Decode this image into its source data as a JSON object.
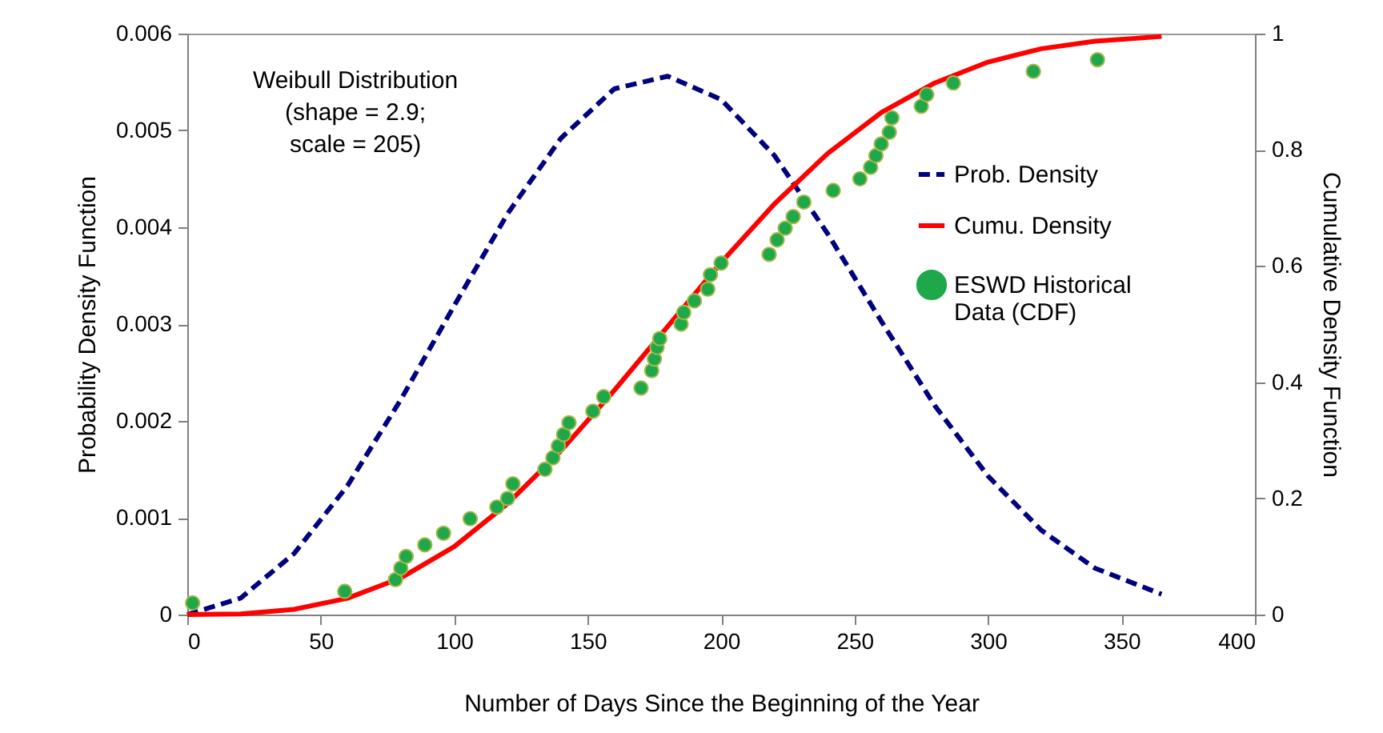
{
  "chart_data": {
    "type": "line",
    "xlabel": "Number of Days Since the Beginning of the Year",
    "ylabel": "Probability  Density Function",
    "y2label": "Cumulative Density Function",
    "annotations": [
      "Weibull Distribution\n(shape = 2.9;\nscale  = 205)"
    ],
    "xlim": [
      0,
      400
    ],
    "xticks": [
      0,
      50,
      100,
      150,
      200,
      250,
      300,
      350,
      400
    ],
    "ylim": [
      0,
      0.006
    ],
    "yticks": [
      0,
      0.001,
      0.002,
      0.003,
      0.004,
      0.005,
      0.006
    ],
    "y2lim": [
      0,
      1
    ],
    "y2ticks": [
      0,
      0.2,
      0.4,
      0.6,
      0.8,
      1
    ],
    "legend": "right",
    "marker": "none",
    "series": [
      {
        "name": "Prob. Density",
        "color": "#00007f",
        "line_style": "dashed",
        "x": [
          0,
          20,
          40,
          60,
          80,
          100,
          120,
          140,
          160,
          180,
          200,
          220,
          240,
          260,
          280,
          300,
          320,
          340,
          365
        ],
        "values": [
          0,
          0.00017,
          0.00063,
          0.00133,
          0.00222,
          0.00319,
          0.00414,
          0.00492,
          0.00543,
          0.00556,
          0.00532,
          0.00474,
          0.00393,
          0.00303,
          0.00216,
          0.00143,
          0.00087,
          0.00048,
          0.00021
        ]
      },
      {
        "name": "Cumu. Density",
        "color": "#ff0000",
        "line_style": "solid",
        "axis": "y2",
        "x": [
          0,
          20,
          40,
          60,
          80,
          100,
          120,
          140,
          160,
          180,
          200,
          220,
          240,
          260,
          280,
          300,
          320,
          340,
          365
        ],
        "values": [
          0,
          0.001,
          0.009,
          0.028,
          0.063,
          0.117,
          0.191,
          0.282,
          0.386,
          0.496,
          0.606,
          0.707,
          0.794,
          0.864,
          0.915,
          0.951,
          0.974,
          0.987,
          0.995
        ]
      },
      {
        "name": "ESWD Historical Data (CDF)",
        "type": "scatter",
        "marker": "circle",
        "color": "#1ea84a",
        "axis": "y2",
        "x": [
          2,
          59,
          78,
          80,
          82,
          89,
          96,
          106,
          116,
          120,
          122,
          134,
          137,
          139,
          141,
          143,
          152,
          156,
          170,
          174,
          175,
          176,
          177,
          185,
          186,
          190,
          195,
          196,
          200,
          218,
          221,
          224,
          227,
          231,
          242,
          252,
          256,
          258,
          260,
          263,
          264,
          275,
          277,
          287,
          317,
          341
        ],
        "values": [
          0.02,
          0.04,
          0.06,
          0.08,
          0.1,
          0.12,
          0.14,
          0.165,
          0.185,
          0.2,
          0.225,
          0.25,
          0.27,
          0.29,
          0.31,
          0.33,
          0.35,
          0.375,
          0.39,
          0.42,
          0.44,
          0.46,
          0.475,
          0.5,
          0.52,
          0.54,
          0.56,
          0.585,
          0.605,
          0.62,
          0.645,
          0.665,
          0.685,
          0.71,
          0.73,
          0.75,
          0.77,
          0.79,
          0.81,
          0.83,
          0.855,
          0.875,
          0.895,
          0.915,
          0.935,
          0.955
        ]
      }
    ]
  }
}
